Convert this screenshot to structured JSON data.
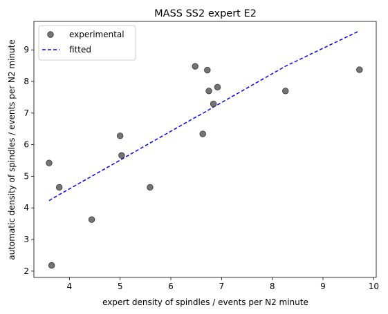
{
  "chart_data": {
    "type": "scatter",
    "title": "MASS SS2 expert E2",
    "xlabel": "expert density of spindles / events per N2 minute",
    "ylabel": "automatic density of spindles / events per N2 minute",
    "xlim": [
      3.3,
      10.05
    ],
    "ylim": [
      1.8,
      9.9
    ],
    "xticks": [
      4,
      5,
      6,
      7,
      8,
      9,
      10
    ],
    "yticks": [
      2,
      3,
      4,
      5,
      6,
      7,
      8,
      9
    ],
    "grid": false,
    "legend_position": "top-left",
    "series": [
      {
        "name": "experimental",
        "kind": "scatter",
        "color": "#555555",
        "points": [
          [
            3.6,
            5.42
          ],
          [
            3.65,
            2.18
          ],
          [
            3.8,
            4.65
          ],
          [
            4.44,
            3.63
          ],
          [
            5.0,
            6.28
          ],
          [
            5.03,
            5.66
          ],
          [
            5.59,
            4.65
          ],
          [
            6.48,
            8.48
          ],
          [
            6.63,
            6.34
          ],
          [
            6.72,
            8.36
          ],
          [
            6.75,
            7.7
          ],
          [
            6.84,
            7.29
          ],
          [
            6.92,
            7.82
          ],
          [
            8.26,
            7.7
          ],
          [
            9.72,
            8.37
          ]
        ]
      },
      {
        "name": "fitted",
        "kind": "line",
        "style": "dashed",
        "color": "#0000ff",
        "x": [
          3.6,
          3.65,
          3.8,
          4.44,
          5.0,
          5.03,
          5.59,
          6.48,
          6.63,
          6.72,
          6.75,
          6.84,
          6.92,
          8.26,
          9.72
        ],
        "y": [
          4.23,
          4.28,
          4.42,
          5.0,
          5.51,
          5.54,
          6.05,
          6.86,
          6.99,
          7.08,
          7.1,
          7.19,
          7.26,
          8.48,
          9.6
        ]
      }
    ]
  }
}
